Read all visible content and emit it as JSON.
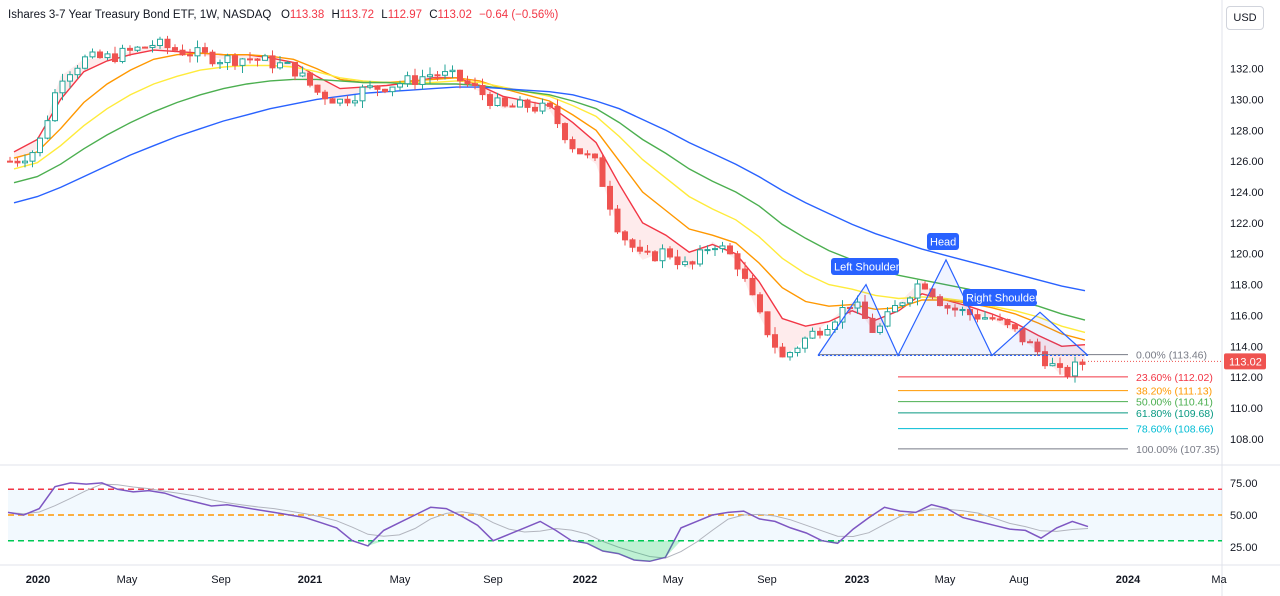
{
  "header": {
    "title": "Ishares 3-7 Year Treasury Bond ETF, 1W, NASDAQ",
    "ohlc": [
      {
        "key": "O",
        "value": "113.38"
      },
      {
        "key": "H",
        "value": "113.72"
      },
      {
        "key": "L",
        "value": "112.97"
      },
      {
        "key": "C",
        "value": "113.02"
      }
    ],
    "change": "−0.64 (−0.56%)",
    "currency": "USD"
  },
  "colors": {
    "up": "#26a69a",
    "down": "#ef5350",
    "ema_red": "#f23645",
    "ema_orange": "#ff9800",
    "ema_yellow": "#ffeb3b",
    "ema_green": "#4caf50",
    "ema_blue": "#2962ff",
    "rsi": "#7e57c2",
    "fib_0": "#787b86",
    "fib_236": "#f23645",
    "fib_382": "#ff9800",
    "fib_500": "#4caf50",
    "fib_618": "#089981",
    "fib_786": "#00bcd4",
    "fib_100": "#787b86",
    "pattern": "#2962ff"
  },
  "chart_data": [
    {
      "type": "candlestick",
      "title": "Ishares 3-7 Year Treasury Bond ETF, 1W, NASDAQ",
      "x_ticks": [
        "2020",
        "May",
        "Sep",
        "2021",
        "May",
        "Sep",
        "2022",
        "May",
        "Sep",
        "2023",
        "May",
        "Aug",
        "2024",
        "Ma"
      ],
      "y_ticks": [
        "132.00",
        "130.00",
        "128.00",
        "126.00",
        "124.00",
        "122.00",
        "120.00",
        "118.00",
        "116.00",
        "114.00",
        "112.00",
        "110.00",
        "108.00"
      ],
      "ylim": [
        106.5,
        134.5
      ],
      "last_price": "113.02",
      "series": [
        {
          "name": "price_close",
          "x": [
            "2020-01",
            "2020-02",
            "2020-03",
            "2020-04",
            "2020-05",
            "2020-06",
            "2020-07",
            "2020-08",
            "2020-09",
            "2020-10",
            "2020-11",
            "2020-12",
            "2021-01",
            "2021-02",
            "2021-03",
            "2021-04",
            "2021-05",
            "2021-06",
            "2021-07",
            "2021-08",
            "2021-09",
            "2021-10",
            "2021-11",
            "2021-12",
            "2022-01",
            "2022-02",
            "2022-03",
            "2022-04",
            "2022-05",
            "2022-06",
            "2022-07",
            "2022-08",
            "2022-09",
            "2022-10",
            "2022-11",
            "2022-12",
            "2023-01",
            "2023-02",
            "2023-03",
            "2023-04",
            "2023-05",
            "2023-06",
            "2023-07",
            "2023-08",
            "2023-09",
            "2023-10",
            "2023-11"
          ],
          "values": [
            126.0,
            126.8,
            131.5,
            132.6,
            132.7,
            133.1,
            133.6,
            133.2,
            132.9,
            132.6,
            132.7,
            132.4,
            132.0,
            130.5,
            129.9,
            130.6,
            130.9,
            131.2,
            131.7,
            131.4,
            130.5,
            129.4,
            129.6,
            129.3,
            127.0,
            125.8,
            121.5,
            119.6,
            120.2,
            119.0,
            120.8,
            119.6,
            116.0,
            113.2,
            114.5,
            115.6,
            116.9,
            114.8,
            116.8,
            118.3,
            116.6,
            116.1,
            115.8,
            114.9,
            113.6,
            112.1,
            113.0
          ]
        },
        {
          "name": "ema_red",
          "values": [
            126.6,
            127.4,
            130.0,
            131.8,
            132.5,
            132.9,
            133.2,
            133.1,
            133.0,
            132.9,
            132.9,
            132.7,
            132.4,
            131.5,
            130.7,
            130.8,
            130.9,
            131.1,
            131.4,
            131.4,
            130.9,
            130.2,
            129.9,
            129.6,
            128.5,
            127.2,
            124.5,
            122.0,
            121.2,
            120.1,
            120.6,
            120.0,
            118.2,
            115.8,
            115.3,
            115.6,
            116.3,
            115.7,
            116.3,
            117.4,
            117.0,
            116.6,
            116.1,
            115.5,
            114.7,
            114.0,
            114.1
          ]
        },
        {
          "name": "ema_orange",
          "values": [
            126.2,
            126.6,
            128.1,
            129.8,
            131.0,
            131.9,
            132.6,
            132.9,
            133.0,
            132.9,
            132.9,
            132.8,
            132.6,
            132.0,
            131.3,
            131.1,
            131.1,
            131.2,
            131.3,
            131.4,
            131.2,
            130.7,
            130.3,
            129.9,
            129.0,
            128.0,
            126.0,
            124.0,
            122.8,
            121.6,
            121.2,
            120.7,
            119.4,
            117.8,
            116.9,
            116.6,
            116.7,
            116.4,
            116.5,
            117.0,
            117.0,
            116.8,
            116.5,
            116.1,
            115.5,
            114.8,
            114.4
          ]
        },
        {
          "name": "ema_yellow",
          "values": [
            125.5,
            125.9,
            127.0,
            128.3,
            129.4,
            130.3,
            131.0,
            131.5,
            131.9,
            132.1,
            132.2,
            132.2,
            132.1,
            131.8,
            131.4,
            131.2,
            131.1,
            131.1,
            131.1,
            131.2,
            131.1,
            130.8,
            130.5,
            130.2,
            129.6,
            128.9,
            127.6,
            126.1,
            124.9,
            123.7,
            122.9,
            122.2,
            121.1,
            119.7,
            118.7,
            118.0,
            117.7,
            117.3,
            117.1,
            117.2,
            117.1,
            116.9,
            116.6,
            116.3,
            115.9,
            115.3,
            114.9
          ]
        },
        {
          "name": "ema_green",
          "values": [
            124.6,
            125.0,
            125.8,
            126.8,
            127.7,
            128.5,
            129.2,
            129.8,
            130.3,
            130.7,
            131.0,
            131.2,
            131.3,
            131.3,
            131.2,
            131.1,
            131.1,
            131.0,
            131.0,
            131.0,
            130.9,
            130.7,
            130.5,
            130.3,
            129.9,
            129.4,
            128.5,
            127.4,
            126.5,
            125.5,
            124.7,
            124.0,
            123.1,
            121.9,
            121.0,
            120.2,
            119.6,
            119.0,
            118.6,
            118.3,
            118.0,
            117.7,
            117.3,
            117.0,
            116.6,
            116.1,
            115.7
          ]
        },
        {
          "name": "ema_blue",
          "values": [
            123.3,
            123.7,
            124.3,
            125.0,
            125.7,
            126.4,
            127.0,
            127.6,
            128.1,
            128.6,
            129.0,
            129.4,
            129.7,
            130.0,
            130.2,
            130.4,
            130.5,
            130.6,
            130.7,
            130.8,
            130.8,
            130.7,
            130.6,
            130.5,
            130.3,
            129.9,
            129.4,
            128.7,
            128.0,
            127.2,
            126.5,
            125.8,
            125.0,
            124.1,
            123.3,
            122.6,
            121.9,
            121.3,
            120.8,
            120.3,
            119.9,
            119.5,
            119.1,
            118.7,
            118.3,
            117.9,
            117.6
          ]
        }
      ],
      "fibonacci": [
        {
          "ratio": "0.00%",
          "price": 113.46,
          "label": "0.00% (113.46)"
        },
        {
          "ratio": "23.60%",
          "price": 112.02,
          "label": "23.60% (112.02)"
        },
        {
          "ratio": "38.20%",
          "price": 111.13,
          "label": "38.20% (111.13)"
        },
        {
          "ratio": "50.00%",
          "price": 110.41,
          "label": "50.00% (110.41)"
        },
        {
          "ratio": "61.80%",
          "price": 109.68,
          "label": "61.80% (109.68)"
        },
        {
          "ratio": "78.60%",
          "price": 108.66,
          "label": "78.60% (108.66)"
        },
        {
          "ratio": "100.00%",
          "price": 107.35,
          "label": "100.00% (107.35)"
        }
      ],
      "annotations": [
        "Left Shoulder",
        "Head",
        "Right Shoulder"
      ]
    },
    {
      "type": "line",
      "series": [
        {
          "values": [
            52,
            50,
            55,
            72,
            75,
            74,
            75,
            70,
            68,
            69,
            67,
            63,
            60,
            57,
            58,
            56,
            54,
            52,
            50,
            48,
            44,
            40,
            30,
            26,
            38,
            44,
            50,
            56,
            55,
            49,
            42,
            30,
            35,
            40,
            45,
            38,
            30,
            28,
            22,
            20,
            15,
            14,
            17,
            40,
            45,
            50,
            52,
            53,
            47,
            45,
            40,
            36,
            30,
            28,
            39,
            48,
            56,
            53,
            52,
            58,
            55,
            48,
            45,
            42,
            39,
            38,
            32,
            40,
            45,
            41
          ]
        }
      ],
      "y_ticks": [
        "75.00",
        "50.00",
        "25.00"
      ],
      "ylim": [
        15,
        85
      ],
      "levels": [
        70,
        50,
        30
      ]
    }
  ]
}
